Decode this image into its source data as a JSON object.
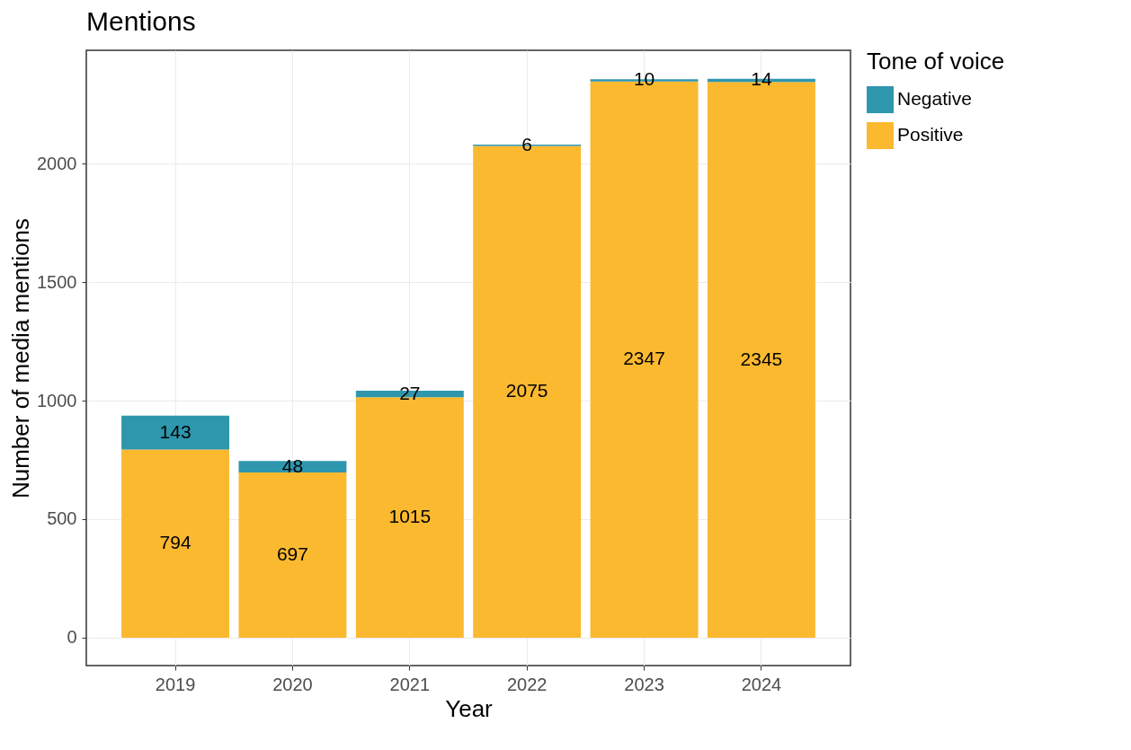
{
  "chart_data": {
    "type": "bar",
    "title": "Mentions",
    "xlabel": "Year",
    "ylabel": "Number of media mentions",
    "legend_title": "Tone of voice",
    "categories": [
      "2019",
      "2020",
      "2021",
      "2022",
      "2023",
      "2024"
    ],
    "series": [
      {
        "name": "Positive",
        "color": "#fbb92f",
        "values": [
          794,
          697,
          1015,
          2075,
          2347,
          2345
        ]
      },
      {
        "name": "Negative",
        "color": "#2e96ad",
        "values": [
          143,
          48,
          27,
          6,
          10,
          14
        ]
      }
    ],
    "stacked": true,
    "data_labels": true,
    "ylim": [
      -118,
      2479
    ],
    "yticks": [
      0,
      500,
      1000,
      1500,
      2000
    ],
    "grid": true,
    "legend": "right"
  }
}
